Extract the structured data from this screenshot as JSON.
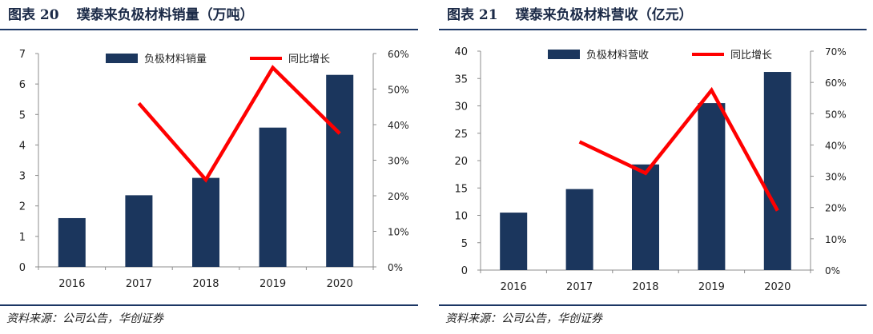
{
  "colors": {
    "bar": "#1b365d",
    "line": "#ff0000",
    "rule": "#1b3664",
    "title": "#1b2a47"
  },
  "figures": [
    {
      "fig_label": "图表 20",
      "title": "璞泰来负极材料销量（万吨）",
      "source": "资料来源：公司公告，华创证券"
    },
    {
      "fig_label": "图表 21",
      "title": "璞泰来负极材料营收（亿元）",
      "source": "资料来源：公司公告，华创证券"
    }
  ],
  "chart_data": [
    {
      "type": "bar",
      "title": "璞泰来负极材料销量（万吨）",
      "categories": [
        "2016",
        "2017",
        "2018",
        "2019",
        "2020"
      ],
      "series": [
        {
          "name": "负极材料销量",
          "type": "bar",
          "axis": "left",
          "values": [
            1.6,
            2.35,
            2.92,
            4.57,
            6.3
          ]
        },
        {
          "name": "同比增长",
          "type": "line",
          "axis": "right",
          "values": [
            null,
            46,
            24.5,
            56,
            37.5
          ]
        }
      ],
      "ylim": [
        0,
        7
      ],
      "yticks": [
        "0",
        "1",
        "2",
        "3",
        "4",
        "5",
        "6",
        "7"
      ],
      "y2lim": [
        0,
        60
      ],
      "y2ticks": [
        "0%",
        "10%",
        "20%",
        "30%",
        "40%",
        "50%",
        "60%"
      ],
      "legend": "top"
    },
    {
      "type": "bar",
      "title": "璞泰来负极材料营收（亿元）",
      "categories": [
        "2016",
        "2017",
        "2018",
        "2019",
        "2020"
      ],
      "series": [
        {
          "name": "负极材料营收",
          "type": "bar",
          "axis": "left",
          "values": [
            10.5,
            14.8,
            19.3,
            30.5,
            36.2
          ]
        },
        {
          "name": "同比增长",
          "type": "line",
          "axis": "right",
          "values": [
            null,
            41,
            31,
            57.5,
            19
          ]
        }
      ],
      "ylim": [
        0,
        40
      ],
      "yticks": [
        "0",
        "5",
        "10",
        "15",
        "20",
        "25",
        "30",
        "35",
        "40"
      ],
      "y2lim": [
        0,
        70
      ],
      "y2ticks": [
        "0%",
        "10%",
        "20%",
        "30%",
        "40%",
        "50%",
        "60%",
        "70%"
      ],
      "legend": "top"
    }
  ]
}
